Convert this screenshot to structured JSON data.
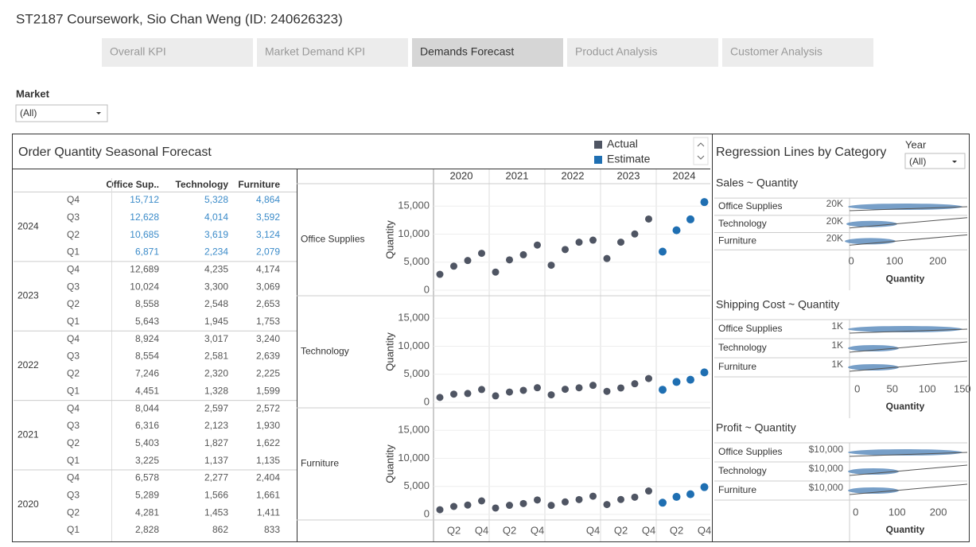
{
  "header": {
    "title": "ST2187 Coursework, Sio Chan Weng (ID: 240626323)"
  },
  "tabs": [
    "Overall KPI",
    "Market Demand KPI",
    "Demands Forecast",
    "Product Analysis",
    "Customer Analysis"
  ],
  "active_tab": 2,
  "market_filter": {
    "label": "Market",
    "value": "(All)"
  },
  "forecast": {
    "title": "Order Quantity Seasonal Forecast"
  },
  "table": {
    "columns": [
      "Office Sup..",
      "Technology",
      "Furniture"
    ],
    "groups": [
      {
        "year": "2024",
        "rows": [
          {
            "quarter": "Q4",
            "cells": [
              "15,712",
              "5,328",
              "4,864"
            ]
          },
          {
            "quarter": "Q3",
            "cells": [
              "12,628",
              "4,014",
              "3,592"
            ]
          },
          {
            "quarter": "Q2",
            "cells": [
              "10,685",
              "3,619",
              "3,124"
            ]
          },
          {
            "quarter": "Q1",
            "cells": [
              "6,871",
              "2,234",
              "2,079"
            ]
          }
        ]
      },
      {
        "year": "2023",
        "rows": [
          {
            "quarter": "Q4",
            "cells": [
              "12,689",
              "4,235",
              "4,174"
            ]
          },
          {
            "quarter": "Q3",
            "cells": [
              "10,024",
              "3,300",
              "3,069"
            ]
          },
          {
            "quarter": "Q2",
            "cells": [
              "8,558",
              "2,548",
              "2,653"
            ]
          },
          {
            "quarter": "Q1",
            "cells": [
              "5,643",
              "1,945",
              "1,753"
            ]
          }
        ]
      },
      {
        "year": "2022",
        "rows": [
          {
            "quarter": "Q4",
            "cells": [
              "8,924",
              "3,017",
              "3,240"
            ]
          },
          {
            "quarter": "Q3",
            "cells": [
              "8,554",
              "2,581",
              "2,639"
            ]
          },
          {
            "quarter": "Q2",
            "cells": [
              "7,246",
              "2,320",
              "2,225"
            ]
          },
          {
            "quarter": "Q1",
            "cells": [
              "4,451",
              "1,328",
              "1,599"
            ]
          }
        ]
      },
      {
        "year": "2021",
        "rows": [
          {
            "quarter": "Q4",
            "cells": [
              "8,044",
              "2,597",
              "2,572"
            ]
          },
          {
            "quarter": "Q3",
            "cells": [
              "6,316",
              "2,123",
              "1,930"
            ]
          },
          {
            "quarter": "Q2",
            "cells": [
              "5,403",
              "1,827",
              "1,622"
            ]
          },
          {
            "quarter": "Q1",
            "cells": [
              "3,225",
              "1,137",
              "1,135"
            ]
          }
        ]
      },
      {
        "year": "2020",
        "rows": [
          {
            "quarter": "Q4",
            "cells": [
              "6,578",
              "2,277",
              "2,404"
            ]
          },
          {
            "quarter": "Q3",
            "cells": [
              "5,289",
              "1,566",
              "1,661"
            ]
          },
          {
            "quarter": "Q2",
            "cells": [
              "4,281",
              "1,453",
              "1,411"
            ]
          },
          {
            "quarter": "Q1",
            "cells": [
              "2,828",
              "862",
              "833"
            ]
          }
        ]
      }
    ]
  },
  "chart_data": {
    "type": "scatter",
    "years": [
      "2020",
      "2021",
      "2022",
      "2023",
      "2024"
    ],
    "categories": [
      null,
      "Q2",
      null,
      "Q4",
      null,
      "Q2",
      null,
      "Q4",
      null,
      null,
      null,
      "Q4",
      null,
      "Q2",
      null,
      "Q4",
      null,
      "Q2",
      null,
      "Q4"
    ],
    "y_label": "Quantity",
    "ylim": [
      -1000,
      19000
    ],
    "yticks": [
      0,
      {
        "value": 5000,
        "label": "5,000"
      },
      {
        "value": 10000,
        "label": "10,000"
      },
      {
        "value": 15000,
        "label": "15,000"
      }
    ],
    "grid": true,
    "legend": [
      {
        "name": "Actual",
        "color": "#4f5563"
      },
      {
        "name": "Estimate",
        "color": "#1f6fb2"
      }
    ],
    "series": [
      {
        "name": "Office Supplies",
        "actual": [
          2828,
          4281,
          5289,
          6578,
          3225,
          5403,
          6316,
          8044,
          4451,
          7246,
          8554,
          8924,
          5643,
          8558,
          10024,
          12689,
          null,
          null,
          null,
          null
        ],
        "estimate": [
          null,
          null,
          null,
          null,
          null,
          null,
          null,
          null,
          null,
          null,
          null,
          null,
          null,
          null,
          null,
          null,
          6871,
          10685,
          12628,
          15712
        ]
      },
      {
        "name": "Technology",
        "actual": [
          862,
          1453,
          1566,
          2277,
          1137,
          1827,
          2123,
          2597,
          1328,
          2320,
          2581,
          3017,
          1945,
          2548,
          3300,
          4235,
          null,
          null,
          null,
          null
        ],
        "estimate": [
          null,
          null,
          null,
          null,
          null,
          null,
          null,
          null,
          null,
          null,
          null,
          null,
          null,
          null,
          null,
          null,
          2234,
          3619,
          4014,
          5328
        ]
      },
      {
        "name": "Furniture",
        "actual": [
          833,
          1411,
          1661,
          2404,
          1135,
          1622,
          1930,
          2572,
          1599,
          2225,
          2639,
          3240,
          1753,
          2653,
          3069,
          4174,
          null,
          null,
          null,
          null
        ],
        "estimate": [
          null,
          null,
          null,
          null,
          null,
          null,
          null,
          null,
          null,
          null,
          null,
          null,
          null,
          null,
          null,
          null,
          2079,
          3124,
          3592,
          4864
        ]
      }
    ]
  },
  "regression": {
    "title": "Regression Lines by Category",
    "year_filter": {
      "label": "Year",
      "value": "(All)"
    },
    "panels": [
      {
        "title": "Sales ~ Quantity",
        "rows": [
          "Office Supplies",
          "Technology",
          "Furniture"
        ],
        "ylabels": [
          "20K",
          "20K",
          "20K"
        ],
        "xlim": [
          -4,
          268
        ],
        "xticks": [
          0,
          100,
          200
        ],
        "xlabel": "Quantity"
      },
      {
        "title": "Shipping Cost ~ Quantity",
        "rows": [
          "Office Supplies",
          "Technology",
          "Furniture"
        ],
        "ylabels": [
          "1K",
          "1K",
          "1K"
        ],
        "xlim": [
          -11,
          157
        ],
        "xticks": [
          0,
          50,
          100,
          150
        ],
        "xlabel": "Quantity"
      },
      {
        "title": "Profit ~ Quantity",
        "rows": [
          "Office Supplies",
          "Technology",
          "Furniture"
        ],
        "ylabels": [
          "$10,000",
          "$10,000",
          "$10,000"
        ],
        "xlim": [
          -15,
          270
        ],
        "xticks": [
          0,
          100,
          200
        ],
        "xlabel": "Quantity"
      }
    ]
  }
}
